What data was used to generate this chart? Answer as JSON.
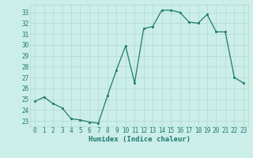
{
  "xlabel": "Humidex (Indice chaleur)",
  "x": [
    0,
    1,
    2,
    3,
    4,
    5,
    6,
    7,
    8,
    9,
    10,
    11,
    12,
    13,
    14,
    15,
    16,
    17,
    18,
    19,
    20,
    21,
    22,
    23
  ],
  "y": [
    24.8,
    25.2,
    24.6,
    24.2,
    23.2,
    23.1,
    22.9,
    22.8,
    25.3,
    27.7,
    29.9,
    26.5,
    31.5,
    31.7,
    33.2,
    33.2,
    33.0,
    32.1,
    32.0,
    32.8,
    31.2,
    31.2,
    27.0,
    26.5
  ],
  "line_color": "#1e7a70",
  "marker_color": "#1e7a70",
  "bg_color": "#cceee8",
  "grid_color": "#b0d8d2",
  "text_color": "#1e7a70",
  "ylim": [
    22.5,
    33.7
  ],
  "yticks": [
    23,
    24,
    25,
    26,
    27,
    28,
    29,
    30,
    31,
    32,
    33
  ],
  "xticks": [
    0,
    1,
    2,
    3,
    4,
    5,
    6,
    7,
    8,
    9,
    10,
    11,
    12,
    13,
    14,
    15,
    16,
    17,
    18,
    19,
    20,
    21,
    22,
    23
  ],
  "xtick_labels": [
    "0",
    "1",
    "2",
    "3",
    "4",
    "5",
    "6",
    "7",
    "8",
    "9",
    "10",
    "11",
    "12",
    "13",
    "14",
    "15",
    "16",
    "17",
    "18",
    "19",
    "20",
    "21",
    "22",
    "23"
  ],
  "fontsize_ticks": 5.5,
  "fontsize_xlabel": 6.5,
  "linewidth": 0.9,
  "markersize": 2.0
}
